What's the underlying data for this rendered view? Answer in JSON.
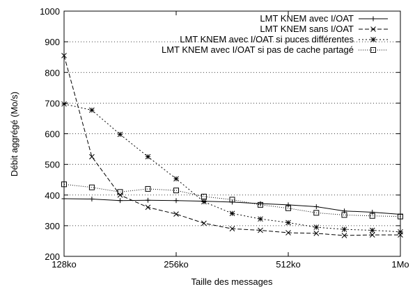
{
  "chart_data": {
    "type": "line",
    "title": "",
    "xlabel": "Taille des messages",
    "ylabel": "Débit aggrégé (Mo/s)",
    "x_scale": "log2",
    "x_ticks": [
      "128ko",
      "256ko",
      "512ko",
      "1Mo"
    ],
    "y_ticks": [
      "200",
      "300",
      "400",
      "500",
      "600",
      "700",
      "800",
      "900",
      "1000"
    ],
    "xlim_ko": [
      128,
      1024
    ],
    "ylim": [
      200,
      1000
    ],
    "grid": "dotted horizontal lines",
    "legend_position": "top-right",
    "x_ko": [
      128,
      152,
      181,
      215,
      256,
      304,
      362,
      431,
      512,
      609,
      724,
      861,
      1024
    ],
    "series": [
      {
        "name": "LMT KNEM avec I/OAT",
        "marker": "plus",
        "dash": "solid",
        "values": [
          388,
          387,
          382,
          383,
          382,
          380,
          377,
          372,
          368,
          362,
          348,
          344,
          337
        ]
      },
      {
        "name": "LMT KNEM sans I/OAT",
        "marker": "x",
        "dash": "dashed",
        "values": [
          855,
          525,
          400,
          360,
          338,
          308,
          290,
          285,
          277,
          275,
          268,
          270,
          270
        ]
      },
      {
        "name": "LMT KNEM avec I/OAT si puces différentes",
        "marker": "star",
        "dash": "dotted",
        "values": [
          697,
          677,
          598,
          525,
          453,
          378,
          340,
          322,
          310,
          295,
          288,
          285,
          280
        ]
      },
      {
        "name": "LMT KNEM avec I/OAT si pas de cache partagé",
        "marker": "square",
        "dash": "finedotted",
        "values": [
          435,
          425,
          410,
          420,
          415,
          395,
          385,
          368,
          357,
          342,
          335,
          332,
          330
        ]
      }
    ]
  }
}
